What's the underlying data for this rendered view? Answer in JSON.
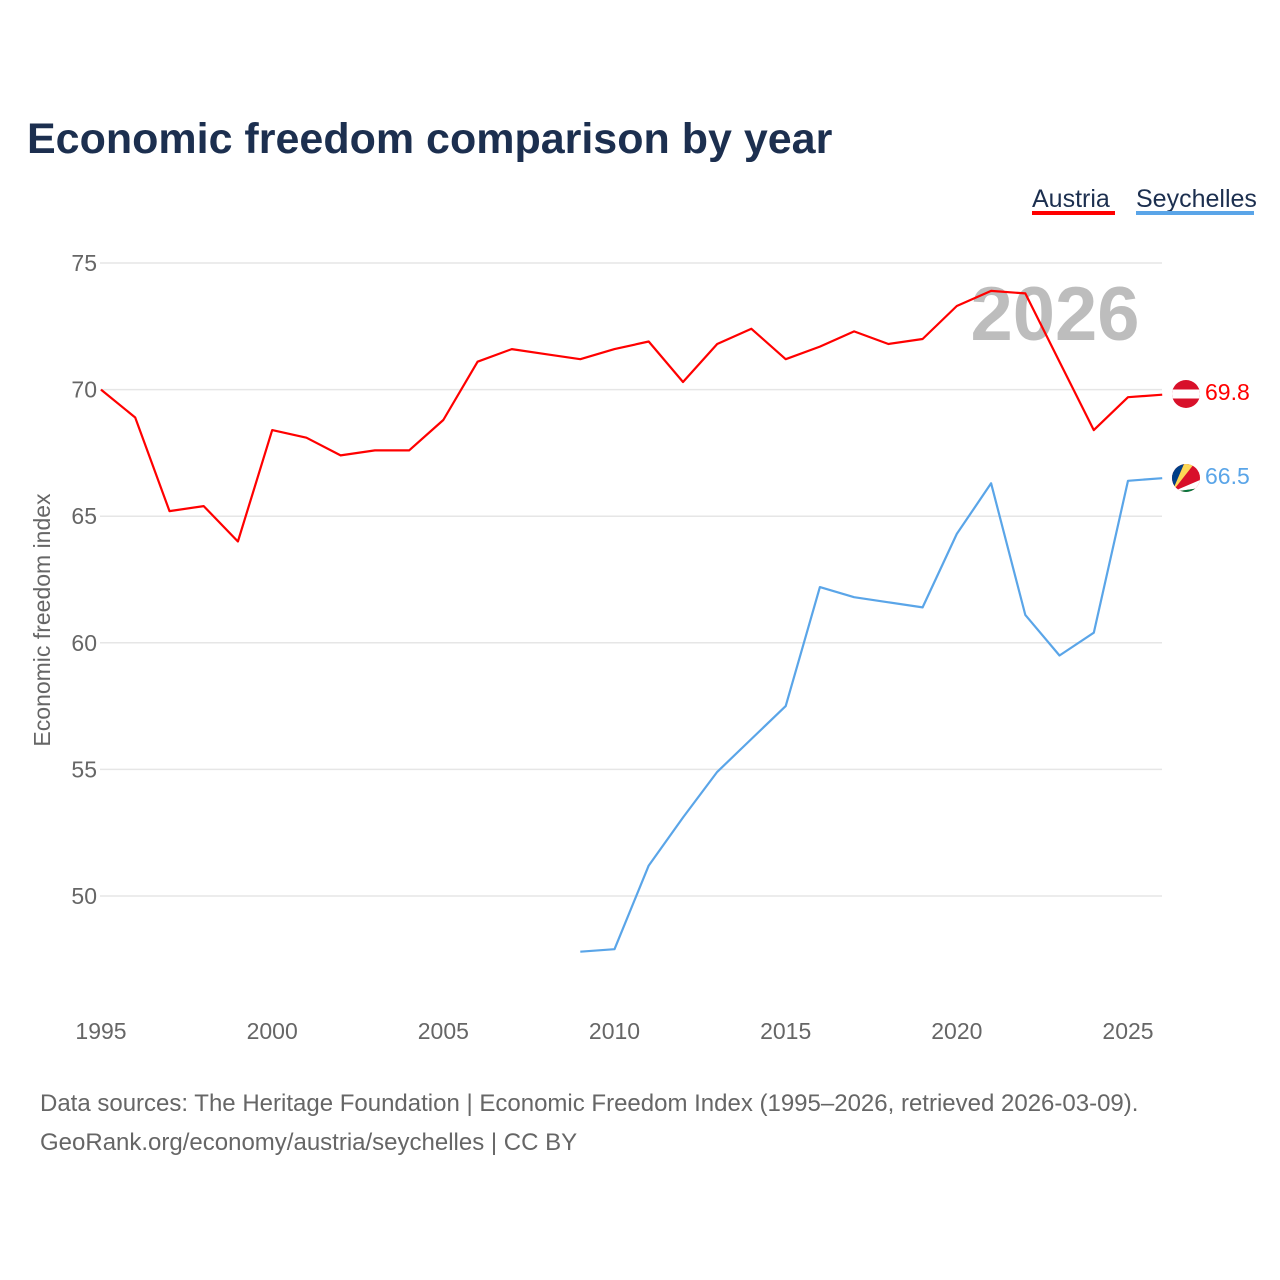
{
  "title": "Economic freedom comparison by year",
  "legend": [
    {
      "label": "Austria",
      "color": "#ff0000"
    },
    {
      "label": "Seychelles",
      "color": "#5aa5e8"
    }
  ],
  "watermark_year": "2026",
  "footer": {
    "line1": "Data sources: The Heritage Foundation | Economic Freedom Index (1995–2026, retrieved 2026-03-09).",
    "line2": "GeoRank.org/economy/austria/seychelles | CC BY"
  },
  "chart_data": {
    "type": "line",
    "title": "Economic freedom comparison by year",
    "xlabel": "",
    "ylabel": "Economic freedom index",
    "xlim": [
      1995,
      2026
    ],
    "ylim": [
      45,
      77
    ],
    "x_ticks": [
      1995,
      2000,
      2005,
      2010,
      2015,
      2020,
      2025
    ],
    "y_ticks": [
      50,
      55,
      60,
      65,
      70,
      75
    ],
    "grid": true,
    "legend_position": "top-right",
    "series": [
      {
        "name": "Austria",
        "color": "#ff0000",
        "end_label": "69.8",
        "x": [
          1995,
          1996,
          1997,
          1998,
          1999,
          2000,
          2001,
          2002,
          2003,
          2004,
          2005,
          2006,
          2007,
          2008,
          2009,
          2010,
          2011,
          2012,
          2013,
          2014,
          2015,
          2016,
          2017,
          2018,
          2019,
          2020,
          2021,
          2022,
          2023,
          2024,
          2025,
          2026
        ],
        "values": [
          70.0,
          68.9,
          65.2,
          65.4,
          64.0,
          68.4,
          68.1,
          67.4,
          67.6,
          67.6,
          68.8,
          71.1,
          71.6,
          71.4,
          71.2,
          71.6,
          71.9,
          70.3,
          71.8,
          72.4,
          71.2,
          71.7,
          72.3,
          71.8,
          72.0,
          73.3,
          73.9,
          73.8,
          71.1,
          68.4,
          69.7,
          69.8
        ]
      },
      {
        "name": "Seychelles",
        "color": "#5aa5e8",
        "end_label": "66.5",
        "x": [
          2009,
          2010,
          2011,
          2012,
          2013,
          2014,
          2015,
          2016,
          2017,
          2018,
          2019,
          2020,
          2021,
          2022,
          2023,
          2024,
          2025,
          2026
        ],
        "values": [
          47.8,
          47.9,
          51.2,
          53.1,
          54.9,
          56.2,
          57.5,
          62.2,
          61.8,
          61.6,
          61.4,
          64.3,
          66.3,
          61.1,
          59.5,
          60.4,
          66.4,
          66.5
        ]
      }
    ]
  }
}
